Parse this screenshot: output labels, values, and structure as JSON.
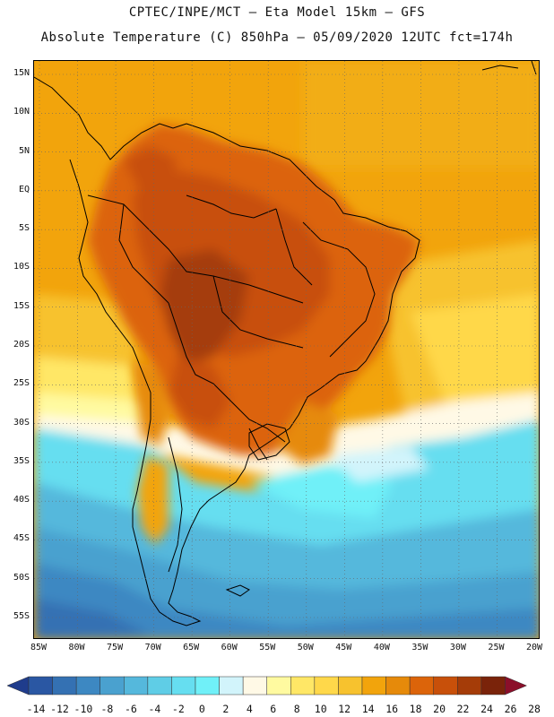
{
  "header": {
    "line1": "CPTEC/INPE/MCT —  Eta Model 15km — GFS",
    "line2": "Absolute Temperature (C) 850hPa — 05/09/2020 12UTC fct=174h"
  },
  "map": {
    "lat_labels": [
      "15N",
      "10N",
      "5N",
      "EQ",
      "5S",
      "10S",
      "15S",
      "20S",
      "25S",
      "30S",
      "35S",
      "40S",
      "45S",
      "50S",
      "55S"
    ],
    "lon_labels": [
      "85W",
      "80W",
      "75W",
      "70W",
      "65W",
      "60W",
      "55W",
      "50W",
      "45W",
      "40W",
      "35W",
      "30W",
      "25W",
      "20W"
    ],
    "lat_range": [
      15,
      -55
    ],
    "lon_range": [
      -85,
      -20
    ],
    "grid": "dotted",
    "background_color": "#f2a40c"
  },
  "colorbar": {
    "labels": [
      "-14",
      "-12",
      "-10",
      "-8",
      "-6",
      "-4",
      "-2",
      "0",
      "2",
      "4",
      "6",
      "8",
      "10",
      "12",
      "14",
      "16",
      "18",
      "20",
      "22",
      "24",
      "26",
      "28"
    ],
    "colors": [
      "#1f3c8c",
      "#2a57a3",
      "#3471b3",
      "#3d88c2",
      "#4aa1cf",
      "#55b8dc",
      "#5fcde6",
      "#66def0",
      "#70f0f8",
      "#d2f4fb",
      "#fff9e6",
      "#fffaa0",
      "#ffe766",
      "#ffd84a",
      "#f7c22e",
      "#f2a40c",
      "#e68a0a",
      "#dc640a",
      "#c8500a",
      "#a53c08",
      "#7a230a",
      "#8b0f2a"
    ]
  }
}
